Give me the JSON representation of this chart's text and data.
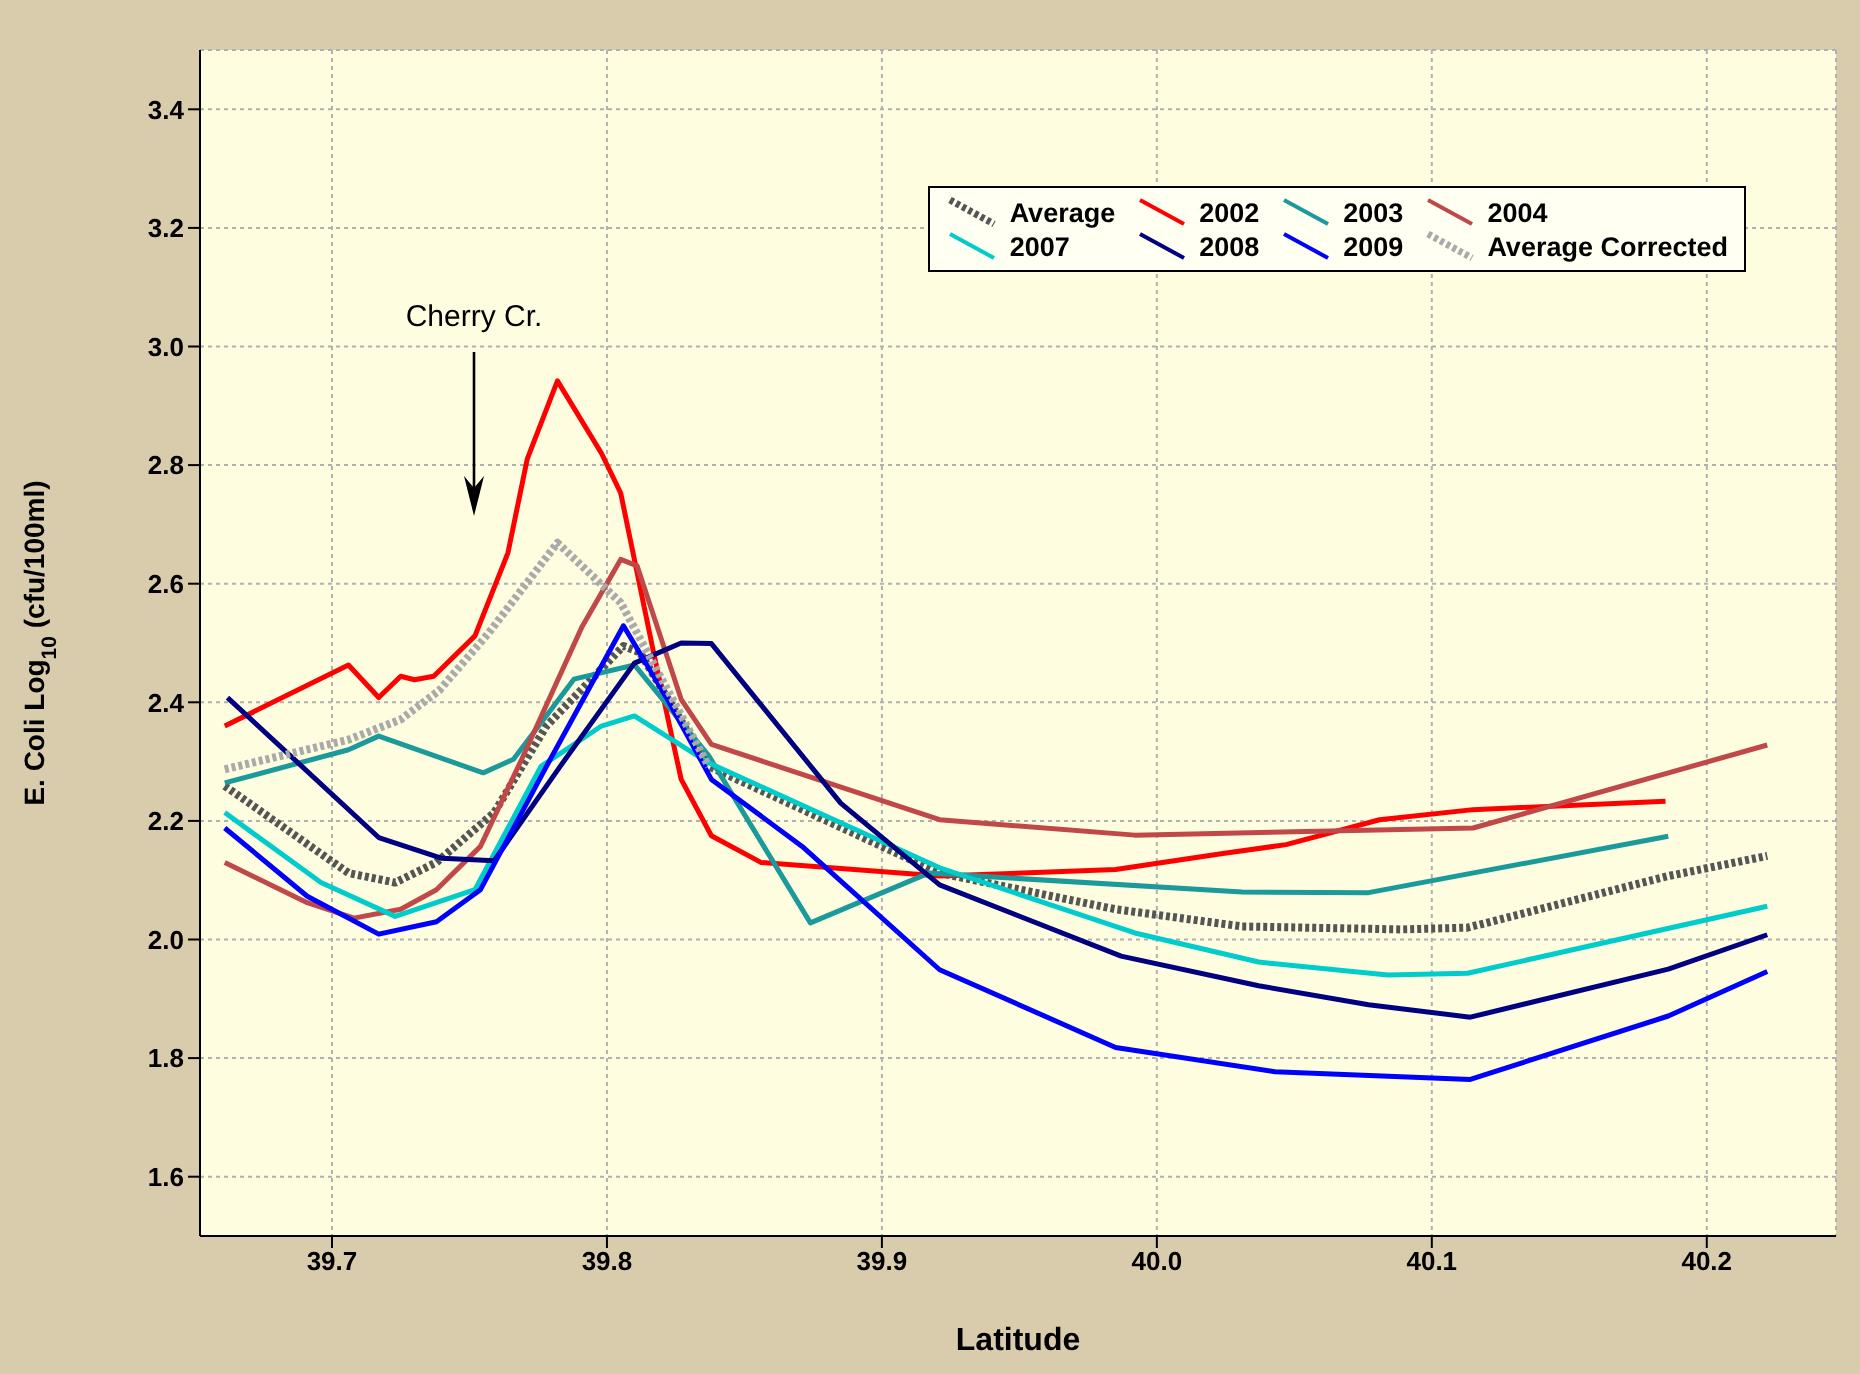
{
  "chart_data": {
    "type": "line",
    "xlabel": "Latitude",
    "ylabel": "E. Coli Log$_{10}$ (cfu/100ml)",
    "xlim": [
      39.652,
      40.247
    ],
    "xticks": [
      39.7,
      39.8,
      39.9,
      {
        "value": 40,
        "label": "40.0"
      },
      40.1,
      40.2
    ],
    "ylim": [
      1.5,
      3.5
    ],
    "yticks": [
      1.6,
      1.8,
      {
        "value": 2,
        "label": "2.0"
      },
      2.2,
      2.4,
      2.6,
      2.8,
      {
        "value": 3,
        "label": "3.0"
      },
      3.2,
      3.4
    ],
    "grid": true,
    "legend": "top right",
    "marker": "none",
    "annotations": [
      "Cherry Cr."
    ],
    "series": [
      {
        "name": "Average",
        "color": "#555555",
        "line_style": "dotted",
        "x": [
          39.661,
          39.706,
          39.723,
          39.738,
          39.759,
          39.778,
          39.806,
          39.812,
          39.837,
          39.921,
          39.985,
          40.031,
          40.089,
          40.113,
          40.186,
          40.222
        ],
        "values": [
          2.259,
          2.112,
          2.096,
          2.13,
          2.214,
          2.36,
          2.495,
          2.484,
          2.292,
          2.112,
          2.051,
          2.022,
          2.017,
          2.02,
          2.107,
          2.141
        ]
      },
      {
        "name": "2002",
        "color": "#ff0000",
        "line_style": "solid",
        "x": [
          39.661,
          39.706,
          39.717,
          39.725,
          39.73,
          39.737,
          39.752,
          39.764,
          39.771,
          39.782,
          39.798,
          39.805,
          39.817,
          39.827,
          39.838,
          39.856,
          39.921,
          39.985,
          40.024,
          40.047,
          40.081,
          40.115,
          40.185
        ],
        "values": [
          2.36,
          2.463,
          2.408,
          2.444,
          2.438,
          2.444,
          2.512,
          2.652,
          2.81,
          2.942,
          2.82,
          2.753,
          2.483,
          2.27,
          2.175,
          2.13,
          2.107,
          2.118,
          2.145,
          2.16,
          2.202,
          2.219,
          2.233
        ]
      },
      {
        "name": "2003",
        "color": "#1a9a9a",
        "line_style": "solid",
        "x": [
          39.661,
          39.706,
          39.717,
          39.755,
          39.766,
          39.788,
          39.81,
          39.837,
          39.874,
          39.917,
          40.031,
          40.077,
          40.186
        ],
        "values": [
          2.264,
          2.32,
          2.343,
          2.281,
          2.304,
          2.439,
          2.463,
          2.31,
          2.028,
          2.112,
          2.08,
          2.079,
          2.174
        ]
      },
      {
        "name": "2004",
        "color": "#c04848",
        "line_style": "solid",
        "x": [
          39.661,
          39.691,
          39.708,
          39.725,
          39.738,
          39.754,
          39.769,
          39.791,
          39.805,
          39.811,
          39.827,
          39.838,
          39.921,
          39.992,
          40.115,
          40.222
        ],
        "values": [
          2.13,
          2.062,
          2.036,
          2.051,
          2.084,
          2.157,
          2.304,
          2.528,
          2.641,
          2.63,
          2.405,
          2.329,
          2.202,
          2.176,
          2.188,
          2.328
        ]
      },
      {
        "name": "2007",
        "color": "#00cccc",
        "line_style": "solid",
        "x": [
          39.661,
          39.696,
          39.723,
          39.752,
          39.776,
          39.798,
          39.81,
          39.837,
          39.921,
          39.992,
          40.037,
          40.084,
          40.113,
          40.222
        ],
        "values": [
          2.214,
          2.096,
          2.039,
          2.084,
          2.292,
          2.36,
          2.377,
          2.298,
          2.121,
          2.011,
          1.962,
          1.94,
          1.943,
          2.056
        ]
      },
      {
        "name": "2008",
        "color": "#000080",
        "line_style": "solid",
        "x": [
          39.662,
          39.717,
          39.74,
          39.759,
          39.783,
          39.81,
          39.827,
          39.838,
          39.885,
          39.921,
          39.987,
          40.037,
          40.077,
          40.114,
          40.186,
          40.222
        ],
        "values": [
          2.408,
          2.172,
          2.137,
          2.133,
          2.292,
          2.466,
          2.5,
          2.499,
          2.23,
          2.092,
          1.972,
          1.922,
          1.89,
          1.869,
          1.95,
          2.008
        ]
      },
      {
        "name": "2009",
        "color": "#0000ff",
        "line_style": "solid",
        "x": [
          39.661,
          39.691,
          39.717,
          39.738,
          39.754,
          39.778,
          39.806,
          39.822,
          39.838,
          39.871,
          39.921,
          39.985,
          40.043,
          40.114,
          40.186,
          40.222
        ],
        "values": [
          2.188,
          2.073,
          2.009,
          2.03,
          2.084,
          2.292,
          2.529,
          2.405,
          2.27,
          2.157,
          1.949,
          1.818,
          1.777,
          1.764,
          1.871,
          1.946
        ]
      },
      {
        "name": "Average Corrected",
        "color": "#aaaaaa",
        "line_style": "dotted",
        "x": [
          39.661,
          39.706,
          39.725,
          39.739,
          39.757,
          39.782,
          39.805,
          39.837
        ],
        "values": [
          2.287,
          2.337,
          2.371,
          2.42,
          2.517,
          2.669,
          2.568,
          2.292
        ]
      }
    ]
  }
}
